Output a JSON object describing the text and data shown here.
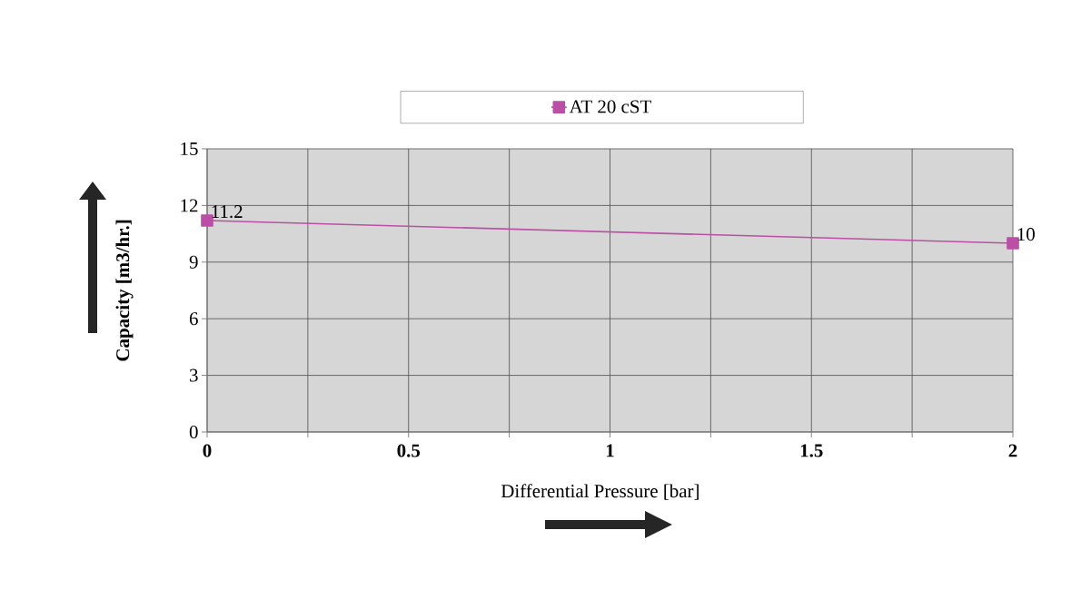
{
  "chart_data": {
    "type": "line",
    "xlabel": "Differential Pressure [bar]",
    "ylabel": "Capacity [m3/hr.]",
    "x": [
      0,
      2
    ],
    "series": [
      {
        "name": "AT 20 cST",
        "color": "#bb4fa5",
        "values": [
          11.2,
          10
        ]
      }
    ],
    "xlim": [
      0,
      2
    ],
    "ylim": [
      0,
      15
    ],
    "xticks": [
      0,
      {
        "value": 0.25,
        "label": null
      },
      0.5,
      {
        "value": 0.75,
        "label": null
      },
      1,
      {
        "value": 1.25,
        "label": null
      },
      1.5,
      {
        "value": 1.75,
        "label": null
      },
      2
    ],
    "yticks": [
      0,
      3,
      6,
      9,
      12,
      15
    ],
    "grid": true,
    "legend": "top",
    "marker": "square",
    "line_style": "solid",
    "data_labels": true
  }
}
